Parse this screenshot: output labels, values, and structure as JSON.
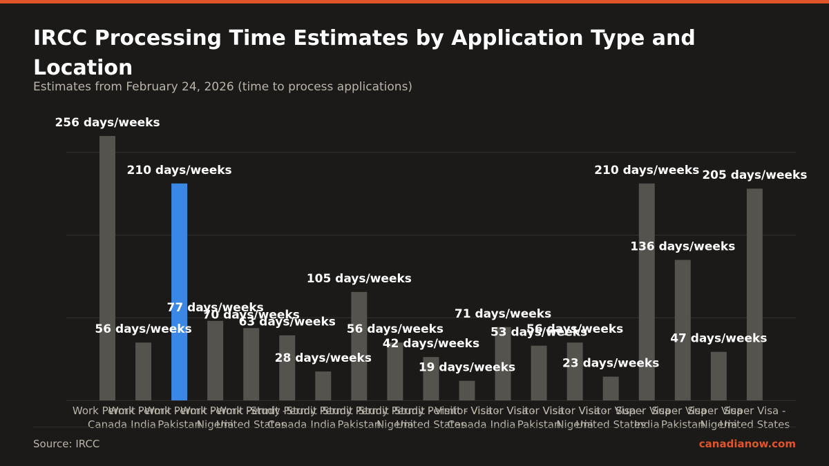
{
  "colors": {
    "accent": "#e0552a",
    "highlight_bar": "#3b87e6",
    "bar": "#55534d",
    "background": "#1b1a18",
    "grid": "#34322e",
    "muted_text": "#b9b5ab"
  },
  "title": "IRCC Processing Time Estimates by Application Type and Location",
  "subtitle": "Estimates from February 24, 2026 (time to process applications)",
  "source": "Source: IRCC",
  "brand": "canadianow.com",
  "chart_data": {
    "type": "bar",
    "value_suffix": " days/weeks",
    "highlight_index": 2,
    "ylim": [
      0,
      280
    ],
    "grid": true,
    "gridlines": [
      0,
      80,
      160,
      240
    ],
    "categories": [
      [
        "Work Permit -",
        "Canada"
      ],
      [
        "Work Permit -",
        "India"
      ],
      [
        "Work Permit -",
        "Pakistan"
      ],
      [
        "Work Permit -",
        "Nigeria"
      ],
      [
        "Work Permit -",
        "United States"
      ],
      [
        "Study Permit -",
        "Canada"
      ],
      [
        "Study Permit -",
        "India"
      ],
      [
        "Study Permit -",
        "Pakistan"
      ],
      [
        "Study Permit -",
        "Nigeria"
      ],
      [
        "Study Permit -",
        "United States"
      ],
      [
        "Visitor Visa -",
        "Canada"
      ],
      [
        "Visitor Visa -",
        "India"
      ],
      [
        "Visitor Visa -",
        "Pakistan"
      ],
      [
        "Visitor Visa -",
        "Nigeria"
      ],
      [
        "Visitor Visa -",
        "United States"
      ],
      [
        "Super Visa -",
        "India"
      ],
      [
        "Super Visa -",
        "Pakistan"
      ],
      [
        "Super Visa -",
        "Nigeria"
      ],
      [
        "Super Visa -",
        "United States"
      ]
    ],
    "values": [
      256,
      56,
      210,
      77,
      70,
      63,
      28,
      105,
      56,
      42,
      19,
      71,
      53,
      56,
      23,
      210,
      136,
      47,
      205
    ]
  }
}
